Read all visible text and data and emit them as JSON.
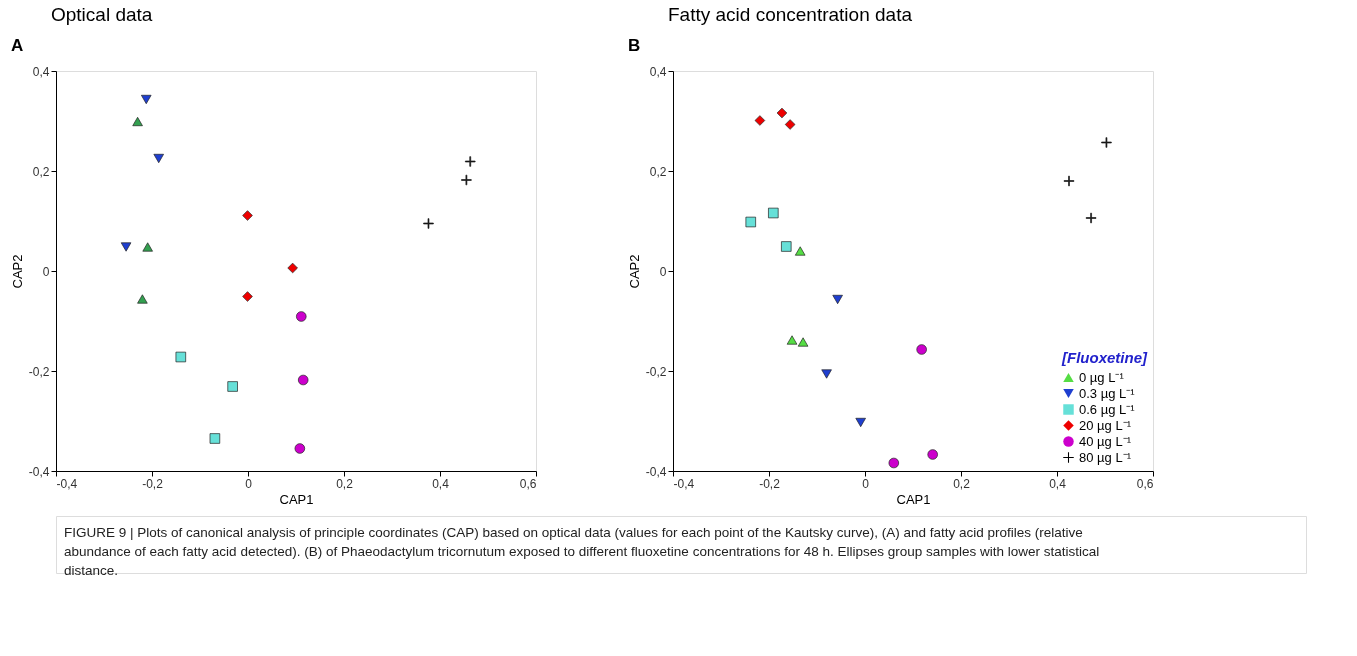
{
  "chart_data": [
    {
      "type": "scatter",
      "title": "Optical data",
      "xlabel": "CAP1",
      "ylabel": "CAP2",
      "legend": false,
      "xlim": [
        -0.4,
        0.6
      ],
      "ylim": [
        -0.4,
        0.4
      ],
      "xticks": [
        {
          "value": -0.4,
          "label": "-0,4"
        },
        {
          "value": -0.2,
          "label": "-0,2"
        },
        0,
        {
          "value": 0.2,
          "label": "0,2"
        },
        {
          "value": 0.4,
          "label": "0,4"
        },
        {
          "value": 0.6,
          "label": "0,6"
        }
      ],
      "yticks": [
        {
          "value": -0.4,
          "label": "-0,4"
        },
        {
          "value": -0.2,
          "label": "-0,2"
        },
        0,
        {
          "value": 0.2,
          "label": "0,2"
        },
        {
          "value": 0.4,
          "label": "0,4"
        }
      ],
      "annotations": [
        "A"
      ],
      "series": [
        {
          "color": "#33a050",
          "marker": "triangle",
          "x": [
            -0.23,
            -0.209,
            -0.22
          ],
          "values": [
            0.299,
            0.048,
            -0.056
          ]
        },
        {
          "color": "#1f3fd0",
          "marker": "triangle-down",
          "x": [
            -0.212,
            -0.186,
            -0.254
          ],
          "values": [
            0.343,
            0.225,
            0.048
          ]
        },
        {
          "color": "#66e0d8",
          "marker": "square",
          "x": [
            -0.14,
            -0.032,
            -0.069
          ],
          "values": [
            -0.172,
            -0.231,
            -0.335
          ]
        },
        {
          "color": "#ee0000",
          "marker": "diamond",
          "x": [
            -0.001,
            0.093,
            -0.001
          ],
          "values": [
            0.111,
            0.006,
            -0.051
          ]
        },
        {
          "color": "#cc00cc",
          "marker": "circle",
          "x": [
            0.111,
            0.115,
            0.108
          ],
          "values": [
            -0.091,
            -0.218,
            -0.355
          ]
        },
        {
          "color": "#000000",
          "marker": "cross",
          "x": [
            0.463,
            0.455,
            0.376
          ],
          "values": [
            0.219,
            0.182,
            0.095
          ]
        }
      ]
    },
    {
      "type": "scatter",
      "title": "Fatty acid concentration data",
      "xlabel": "CAP1",
      "ylabel": "CAP2",
      "legend": "bottom right",
      "legend_title": "[Fluoxetine]",
      "xlim": [
        -0.4,
        0.6
      ],
      "ylim": [
        -0.4,
        0.4
      ],
      "xticks": [
        {
          "value": -0.4,
          "label": "-0,4"
        },
        {
          "value": -0.2,
          "label": "-0,2"
        },
        0,
        {
          "value": 0.2,
          "label": "0,2"
        },
        {
          "value": 0.4,
          "label": "0,4"
        },
        {
          "value": 0.6,
          "label": "0,6"
        }
      ],
      "yticks": [
        {
          "value": -0.4,
          "label": "-0,4"
        },
        {
          "value": -0.2,
          "label": "-0,2"
        },
        0,
        {
          "value": 0.2,
          "label": "0,2"
        },
        {
          "value": 0.4,
          "label": "0,4"
        }
      ],
      "annotations": [
        "B",
        "FIGURE 9 | Plots of canonical analysis of principle coordinates (CAP) based on optical data (values for each point of the Kautsky curve), (A) and fatty acid profiles (relative abundance of each fatty acid detected). (B) of Phaeodactylum tricornutum exposed to different fluoxetine concentrations for 48 h. Ellipses group samples with lower statistical distance."
      ],
      "series": [
        {
          "name": "0 µg L⁻¹",
          "color": "#55dd44",
          "marker": "triangle",
          "x": [
            -0.135,
            -0.152,
            -0.129
          ],
          "values": [
            0.04,
            -0.138,
            -0.142
          ]
        },
        {
          "name": "0.3 µg L⁻¹",
          "color": "#1f3fd0",
          "marker": "triangle-down",
          "x": [
            -0.057,
            -0.08,
            -0.009
          ],
          "values": [
            -0.057,
            -0.206,
            -0.303
          ]
        },
        {
          "name": "0.6 µg L⁻¹",
          "color": "#66e0d8",
          "marker": "square",
          "x": [
            -0.238,
            -0.191,
            -0.164
          ],
          "values": [
            0.098,
            0.116,
            0.049
          ]
        },
        {
          "name": "20 µg L⁻¹",
          "color": "#ee0000",
          "marker": "diamond",
          "x": [
            -0.219,
            -0.173,
            -0.156
          ],
          "values": [
            0.301,
            0.316,
            0.293
          ]
        },
        {
          "name": "40 µg L⁻¹",
          "color": "#cc00cc",
          "marker": "circle",
          "x": [
            0.118,
            0.06,
            0.141
          ],
          "values": [
            -0.157,
            -0.384,
            -0.367
          ]
        },
        {
          "name": "80 µg L⁻¹",
          "color": "#000000",
          "marker": "cross",
          "x": [
            0.503,
            0.425,
            0.471
          ],
          "values": [
            0.257,
            0.18,
            0.106
          ]
        }
      ]
    }
  ]
}
